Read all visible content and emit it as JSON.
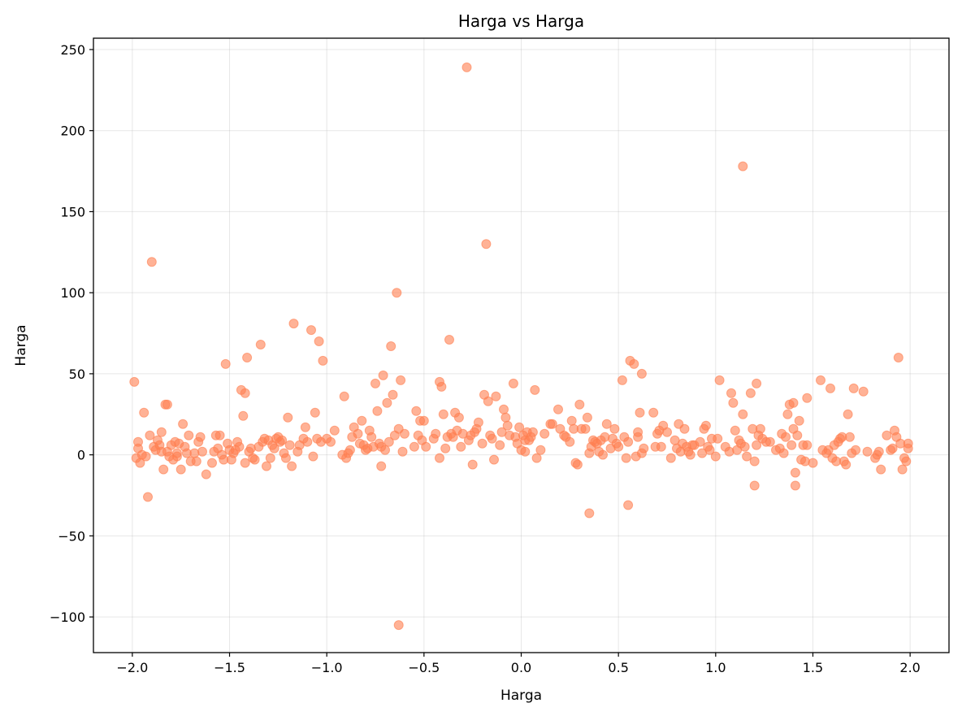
{
  "chart_data": {
    "type": "scatter",
    "title": "Harga vs Harga",
    "xlabel": "Harga",
    "ylabel": "Harga",
    "xlim": [
      -2.2,
      2.2
    ],
    "ylim": [
      -122,
      257
    ],
    "xticks": [
      -2.0,
      -1.5,
      -1.0,
      -0.5,
      0.0,
      0.5,
      1.0,
      1.5,
      2.0
    ],
    "xtick_labels": [
      "−2.0",
      "−1.5",
      "−1.0",
      "−0.5",
      "0.0",
      "0.5",
      "1.0",
      "1.5",
      "2.0"
    ],
    "yticks": [
      -100,
      -50,
      0,
      50,
      100,
      150,
      200,
      250
    ],
    "ytick_labels": [
      "−100",
      "−50",
      "0",
      "50",
      "100",
      "150",
      "200",
      "250"
    ],
    "grid": true,
    "color": "#ff7f50",
    "points": [
      [
        -1.99,
        45
      ],
      [
        -1.98,
        -2
      ],
      [
        -1.97,
        8
      ],
      [
        -1.97,
        4
      ],
      [
        -1.96,
        -5
      ],
      [
        -1.95,
        0
      ],
      [
        -1.94,
        26
      ],
      [
        -1.93,
        -1
      ],
      [
        -1.92,
        -26
      ],
      [
        -1.91,
        12
      ],
      [
        -1.9,
        119
      ],
      [
        -1.89,
        5
      ],
      [
        -1.88,
        3
      ],
      [
        -1.87,
        9
      ],
      [
        -1.86,
        6
      ],
      [
        -1.85,
        2
      ],
      [
        -1.85,
        14
      ],
      [
        -1.84,
        -9
      ],
      [
        -1.83,
        31
      ],
      [
        -1.82,
        31
      ],
      [
        -1.82,
        2
      ],
      [
        -1.81,
        -1
      ],
      [
        -1.8,
        6
      ],
      [
        -1.79,
        -3
      ],
      [
        -1.78,
        8
      ],
      [
        -1.77,
        1
      ],
      [
        -1.77,
        -1
      ],
      [
        -1.76,
        7
      ],
      [
        -1.75,
        -9
      ],
      [
        -1.74,
        19
      ],
      [
        -1.73,
        5
      ],
      [
        -1.72,
        1
      ],
      [
        -1.71,
        12
      ],
      [
        -1.7,
        -4
      ],
      [
        -1.68,
        1
      ],
      [
        -1.67,
        -4
      ],
      [
        -1.66,
        8
      ],
      [
        -1.65,
        11
      ],
      [
        -1.64,
        2
      ],
      [
        -1.62,
        -12
      ],
      [
        -1.59,
        -5
      ],
      [
        -1.58,
        2
      ],
      [
        -1.57,
        12
      ],
      [
        -1.56,
        4
      ],
      [
        -1.55,
        12
      ],
      [
        -1.54,
        0
      ],
      [
        -1.53,
        -3
      ],
      [
        -1.52,
        56
      ],
      [
        -1.51,
        7
      ],
      [
        -1.5,
        3
      ],
      [
        -1.49,
        -3
      ],
      [
        -1.48,
        1
      ],
      [
        -1.47,
        3
      ],
      [
        -1.46,
        8
      ],
      [
        -1.45,
        5
      ],
      [
        -1.44,
        40
      ],
      [
        -1.43,
        24
      ],
      [
        -1.42,
        -5
      ],
      [
        -1.42,
        38
      ],
      [
        -1.41,
        60
      ],
      [
        -1.4,
        2
      ],
      [
        -1.39,
        4
      ],
      [
        -1.38,
        -2
      ],
      [
        -1.37,
        -3
      ],
      [
        -1.35,
        5
      ],
      [
        -1.34,
        68
      ],
      [
        -1.33,
        8
      ],
      [
        -1.32,
        10
      ],
      [
        -1.31,
        -7
      ],
      [
        -1.3,
        9
      ],
      [
        -1.29,
        -2
      ],
      [
        -1.28,
        6
      ],
      [
        -1.27,
        4
      ],
      [
        -1.26,
        10
      ],
      [
        -1.25,
        11
      ],
      [
        -1.24,
        8
      ],
      [
        -1.23,
        9
      ],
      [
        -1.22,
        1
      ],
      [
        -1.21,
        -2
      ],
      [
        -1.2,
        23
      ],
      [
        -1.19,
        6
      ],
      [
        -1.18,
        -7
      ],
      [
        -1.17,
        81
      ],
      [
        -1.15,
        2
      ],
      [
        -1.14,
        6
      ],
      [
        -1.12,
        10
      ],
      [
        -1.11,
        17
      ],
      [
        -1.1,
        8
      ],
      [
        -1.08,
        77
      ],
      [
        -1.07,
        -1
      ],
      [
        -1.06,
        26
      ],
      [
        -1.05,
        10
      ],
      [
        -1.04,
        70
      ],
      [
        -1.03,
        8
      ],
      [
        -1.02,
        58
      ],
      [
        -1.0,
        10
      ],
      [
        -0.98,
        8
      ],
      [
        -0.96,
        15
      ],
      [
        -0.92,
        0
      ],
      [
        -0.91,
        36
      ],
      [
        -0.9,
        -2
      ],
      [
        -0.89,
        1
      ],
      [
        -0.88,
        3
      ],
      [
        -0.87,
        11
      ],
      [
        -0.86,
        17
      ],
      [
        -0.84,
        13
      ],
      [
        -0.83,
        7
      ],
      [
        -0.82,
        21
      ],
      [
        -0.81,
        6
      ],
      [
        -0.8,
        3
      ],
      [
        -0.79,
        4
      ],
      [
        -0.78,
        15
      ],
      [
        -0.77,
        11
      ],
      [
        -0.76,
        5
      ],
      [
        -0.75,
        44
      ],
      [
        -0.74,
        27
      ],
      [
        -0.73,
        7
      ],
      [
        -0.72,
        5
      ],
      [
        -0.72,
        -7
      ],
      [
        -0.71,
        49
      ],
      [
        -0.7,
        3
      ],
      [
        -0.69,
        32
      ],
      [
        -0.68,
        8
      ],
      [
        -0.67,
        67
      ],
      [
        -0.66,
        37
      ],
      [
        -0.65,
        12
      ],
      [
        -0.64,
        100
      ],
      [
        -0.63,
        16
      ],
      [
        -0.63,
        -105
      ],
      [
        -0.62,
        46
      ],
      [
        -0.61,
        2
      ],
      [
        -0.6,
        13
      ],
      [
        -0.55,
        5
      ],
      [
        -0.54,
        27
      ],
      [
        -0.53,
        12
      ],
      [
        -0.52,
        21
      ],
      [
        -0.51,
        9
      ],
      [
        -0.5,
        21
      ],
      [
        -0.49,
        5
      ],
      [
        -0.45,
        10
      ],
      [
        -0.44,
        13
      ],
      [
        -0.42,
        45
      ],
      [
        -0.42,
        -2
      ],
      [
        -0.41,
        42
      ],
      [
        -0.4,
        25
      ],
      [
        -0.39,
        4
      ],
      [
        -0.38,
        11
      ],
      [
        -0.37,
        71
      ],
      [
        -0.36,
        13
      ],
      [
        -0.35,
        11
      ],
      [
        -0.34,
        26
      ],
      [
        -0.33,
        15
      ],
      [
        -0.32,
        23
      ],
      [
        -0.31,
        5
      ],
      [
        -0.3,
        13
      ],
      [
        -0.28,
        239
      ],
      [
        -0.27,
        9
      ],
      [
        -0.26,
        12
      ],
      [
        -0.25,
        -6
      ],
      [
        -0.24,
        14
      ],
      [
        -0.23,
        16
      ],
      [
        -0.22,
        20
      ],
      [
        -0.2,
        7
      ],
      [
        -0.19,
        37
      ],
      [
        -0.18,
        130
      ],
      [
        -0.17,
        33
      ],
      [
        -0.16,
        12
      ],
      [
        -0.15,
        10
      ],
      [
        -0.14,
        -3
      ],
      [
        -0.13,
        36
      ],
      [
        -0.11,
        6
      ],
      [
        -0.1,
        14
      ],
      [
        -0.09,
        28
      ],
      [
        -0.08,
        23
      ],
      [
        -0.07,
        18
      ],
      [
        -0.06,
        12
      ],
      [
        -0.04,
        44
      ],
      [
        -0.03,
        11
      ],
      [
        -0.02,
        7
      ],
      [
        -0.01,
        17
      ],
      [
        0.0,
        3
      ],
      [
        0.01,
        12
      ],
      [
        0.02,
        2
      ],
      [
        0.02,
        9
      ],
      [
        0.03,
        14
      ],
      [
        0.04,
        9
      ],
      [
        0.05,
        11
      ],
      [
        0.06,
        14
      ],
      [
        0.07,
        40
      ],
      [
        0.08,
        -2
      ],
      [
        0.1,
        3
      ],
      [
        0.12,
        13
      ],
      [
        0.15,
        19
      ],
      [
        0.16,
        19
      ],
      [
        0.19,
        28
      ],
      [
        0.2,
        16
      ],
      [
        0.22,
        12
      ],
      [
        0.23,
        11
      ],
      [
        0.25,
        8
      ],
      [
        0.26,
        21
      ],
      [
        0.27,
        16
      ],
      [
        0.28,
        -5
      ],
      [
        0.29,
        -6
      ],
      [
        0.3,
        31
      ],
      [
        0.31,
        16
      ],
      [
        0.33,
        16
      ],
      [
        0.34,
        23
      ],
      [
        0.35,
        -36
      ],
      [
        0.35,
        1
      ],
      [
        0.36,
        5
      ],
      [
        0.37,
        9
      ],
      [
        0.38,
        8
      ],
      [
        0.39,
        7
      ],
      [
        0.4,
        2
      ],
      [
        0.41,
        9
      ],
      [
        0.42,
        0
      ],
      [
        0.43,
        11
      ],
      [
        0.44,
        19
      ],
      [
        0.46,
        4
      ],
      [
        0.47,
        10
      ],
      [
        0.48,
        16
      ],
      [
        0.49,
        7
      ],
      [
        0.5,
        5
      ],
      [
        0.52,
        46
      ],
      [
        0.53,
        11
      ],
      [
        0.54,
        -2
      ],
      [
        0.55,
        8
      ],
      [
        0.55,
        -31
      ],
      [
        0.56,
        58
      ],
      [
        0.58,
        56
      ],
      [
        0.59,
        -1
      ],
      [
        0.6,
        11
      ],
      [
        0.6,
        14
      ],
      [
        0.61,
        26
      ],
      [
        0.62,
        1
      ],
      [
        0.62,
        50
      ],
      [
        0.63,
        4
      ],
      [
        0.68,
        26
      ],
      [
        0.69,
        5
      ],
      [
        0.7,
        13
      ],
      [
        0.71,
        15
      ],
      [
        0.72,
        5
      ],
      [
        0.73,
        18
      ],
      [
        0.75,
        14
      ],
      [
        0.77,
        -2
      ],
      [
        0.79,
        9
      ],
      [
        0.8,
        4
      ],
      [
        0.81,
        19
      ],
      [
        0.82,
        2
      ],
      [
        0.83,
        7
      ],
      [
        0.84,
        16
      ],
      [
        0.85,
        5
      ],
      [
        0.86,
        2
      ],
      [
        0.87,
        0
      ],
      [
        0.88,
        6
      ],
      [
        0.89,
        6
      ],
      [
        0.92,
        8
      ],
      [
        0.93,
        1
      ],
      [
        0.94,
        16
      ],
      [
        0.95,
        18
      ],
      [
        0.96,
        5
      ],
      [
        0.97,
        3
      ],
      [
        0.98,
        10
      ],
      [
        1.0,
        -1
      ],
      [
        1.01,
        10
      ],
      [
        1.02,
        46
      ],
      [
        1.05,
        5
      ],
      [
        1.07,
        2
      ],
      [
        1.08,
        38
      ],
      [
        1.09,
        32
      ],
      [
        1.1,
        15
      ],
      [
        1.11,
        3
      ],
      [
        1.12,
        9
      ],
      [
        1.13,
        7
      ],
      [
        1.14,
        178
      ],
      [
        1.14,
        25
      ],
      [
        1.15,
        5
      ],
      [
        1.16,
        -1
      ],
      [
        1.18,
        38
      ],
      [
        1.19,
        16
      ],
      [
        1.2,
        -4
      ],
      [
        1.2,
        -19
      ],
      [
        1.21,
        44
      ],
      [
        1.21,
        6
      ],
      [
        1.22,
        12
      ],
      [
        1.23,
        16
      ],
      [
        1.24,
        10
      ],
      [
        1.26,
        8
      ],
      [
        1.28,
        8
      ],
      [
        1.31,
        3
      ],
      [
        1.33,
        4
      ],
      [
        1.34,
        13
      ],
      [
        1.35,
        1
      ],
      [
        1.36,
        11
      ],
      [
        1.37,
        25
      ],
      [
        1.38,
        31
      ],
      [
        1.39,
        6
      ],
      [
        1.4,
        32
      ],
      [
        1.4,
        16
      ],
      [
        1.41,
        -11
      ],
      [
        1.41,
        -19
      ],
      [
        1.42,
        12
      ],
      [
        1.43,
        21
      ],
      [
        1.44,
        -3
      ],
      [
        1.45,
        6
      ],
      [
        1.46,
        -4
      ],
      [
        1.47,
        6
      ],
      [
        1.47,
        35
      ],
      [
        1.5,
        -5
      ],
      [
        1.54,
        46
      ],
      [
        1.55,
        3
      ],
      [
        1.57,
        1
      ],
      [
        1.58,
        3
      ],
      [
        1.59,
        41
      ],
      [
        1.6,
        -2
      ],
      [
        1.61,
        6
      ],
      [
        1.62,
        -4
      ],
      [
        1.63,
        8
      ],
      [
        1.64,
        10
      ],
      [
        1.65,
        11
      ],
      [
        1.66,
        -4
      ],
      [
        1.67,
        -6
      ],
      [
        1.68,
        25
      ],
      [
        1.69,
        11
      ],
      [
        1.7,
        1
      ],
      [
        1.71,
        41
      ],
      [
        1.72,
        3
      ],
      [
        1.76,
        39
      ],
      [
        1.78,
        2
      ],
      [
        1.82,
        -2
      ],
      [
        1.83,
        0
      ],
      [
        1.84,
        2
      ],
      [
        1.85,
        -9
      ],
      [
        1.88,
        12
      ],
      [
        1.9,
        3
      ],
      [
        1.91,
        4
      ],
      [
        1.92,
        15
      ],
      [
        1.93,
        11
      ],
      [
        1.94,
        60
      ],
      [
        1.95,
        7
      ],
      [
        1.96,
        -9
      ],
      [
        1.97,
        -2
      ],
      [
        1.98,
        -4
      ],
      [
        1.99,
        7
      ],
      [
        1.99,
        4
      ]
    ]
  }
}
